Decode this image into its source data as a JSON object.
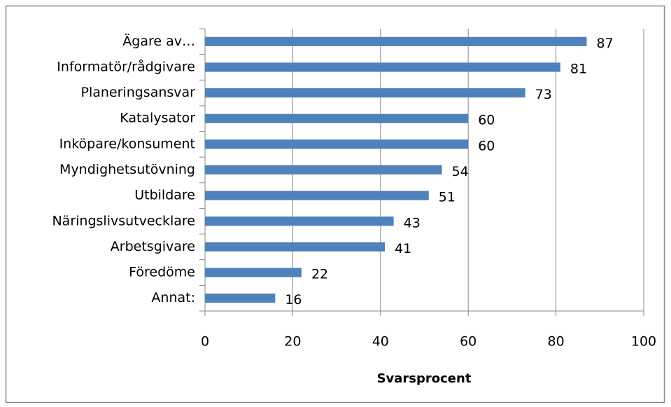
{
  "chart_data": {
    "type": "bar",
    "orientation": "horizontal",
    "categories": [
      "Ägare av…",
      "Informatör/rådgivare",
      "Planeringsansvar",
      "Katalysator",
      "Inköpare/konsument",
      "Myndighetsutövning",
      "Utbildare",
      "Näringslivsutvecklare",
      "Arbetsgivare",
      "Föredöme",
      "Annat:"
    ],
    "values": [
      87,
      81,
      73,
      60,
      60,
      54,
      51,
      43,
      41,
      22,
      16
    ],
    "color": "#4f81bd",
    "x_label": "Svarsprocent",
    "xlim": [
      0,
      100
    ],
    "xticks": [
      0,
      20,
      40,
      60,
      80,
      100
    ],
    "grid": true
  }
}
